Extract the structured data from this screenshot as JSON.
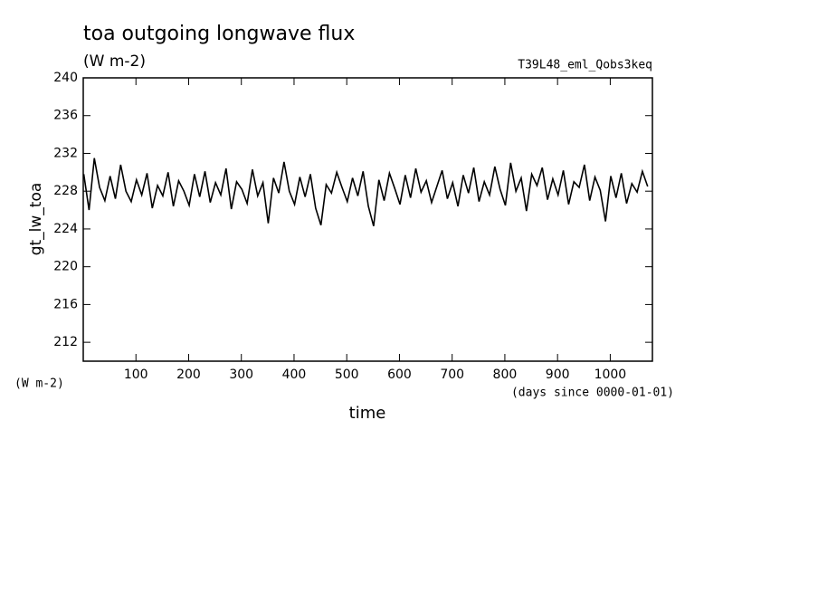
{
  "chart_data": {
    "type": "line",
    "title": "toa outgoing longwave flux",
    "subtitle": "(W m-2)",
    "run_label": "T39L48_eml_Qobs3keq",
    "ylabel": "gt_lw_toa",
    "yunit": "(W m-2)",
    "xunit": "(days since 0000-01-01)",
    "xlabel": "time",
    "color": "#000000",
    "xlim": [
      0,
      1080
    ],
    "ylim": [
      210,
      240
    ],
    "xticks": [
      100,
      200,
      300,
      400,
      500,
      600,
      700,
      800,
      900,
      1000
    ],
    "yticks": [
      212,
      216,
      220,
      224,
      228,
      232,
      236,
      240
    ],
    "x": [
      1,
      11,
      21,
      31,
      41,
      51,
      61,
      71,
      81,
      91,
      101,
      111,
      121,
      131,
      141,
      151,
      161,
      171,
      181,
      191,
      201,
      211,
      221,
      231,
      241,
      251,
      261,
      271,
      281,
      291,
      301,
      311,
      321,
      331,
      341,
      351,
      361,
      371,
      381,
      391,
      401,
      411,
      421,
      431,
      441,
      451,
      461,
      471,
      481,
      491,
      501,
      511,
      521,
      531,
      541,
      551,
      561,
      571,
      581,
      591,
      601,
      611,
      621,
      631,
      641,
      651,
      661,
      671,
      681,
      691,
      701,
      711,
      721,
      731,
      741,
      751,
      761,
      771,
      781,
      791,
      801,
      811,
      821,
      831,
      841,
      851,
      861,
      871,
      881,
      891,
      901,
      911,
      921,
      931,
      941,
      951,
      961,
      971,
      981,
      991,
      1001,
      1011,
      1021,
      1031,
      1041,
      1051,
      1061,
      1071
    ],
    "values": [
      229.8,
      226.0,
      231.5,
      228.4,
      227.0,
      229.6,
      227.2,
      230.8,
      228.0,
      226.9,
      229.2,
      227.6,
      229.9,
      226.2,
      228.6,
      227.5,
      230.0,
      226.4,
      229.1,
      228.0,
      226.5,
      229.8,
      227.4,
      230.1,
      226.8,
      228.9,
      227.6,
      230.4,
      226.1,
      229.0,
      228.2,
      226.7,
      230.3,
      227.5,
      228.9,
      224.6,
      229.4,
      227.8,
      231.1,
      228.0,
      226.6,
      229.5,
      227.4,
      229.8,
      226.2,
      224.4,
      228.7,
      227.8,
      230.0,
      228.4,
      226.9,
      229.4,
      227.5,
      230.1,
      226.4,
      224.3,
      229.2,
      227.0,
      229.9,
      228.3,
      226.6,
      229.7,
      227.3,
      230.4,
      227.9,
      229.1,
      226.8,
      228.5,
      230.2,
      227.2,
      228.9,
      226.4,
      229.7,
      227.8,
      230.5,
      226.9,
      229.0,
      227.6,
      230.6,
      228.2,
      226.5,
      231.0,
      228.0,
      229.4,
      225.9,
      229.8,
      228.6,
      230.5,
      227.1,
      229.3,
      227.6,
      230.2,
      226.6,
      229.0,
      228.4,
      230.8,
      227.0,
      229.5,
      228.1,
      224.8,
      229.6,
      227.3,
      229.9,
      226.7,
      228.8,
      227.9,
      230.1,
      228.5
    ]
  }
}
